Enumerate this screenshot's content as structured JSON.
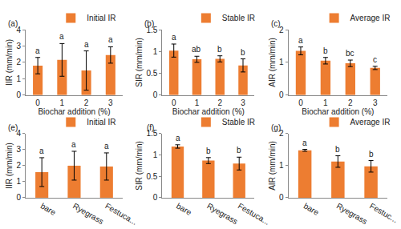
{
  "chart_data": [
    {
      "type": "bar",
      "title": "(a)",
      "x_label": "Biochar addition (%)",
      "y_label": "IIR (mm/min)",
      "categories": [
        "0",
        "1",
        "2",
        "3"
      ],
      "series": [
        {
          "name": "Initial IR",
          "color": "#ed7d31",
          "values": [
            1.8,
            2.15,
            1.5,
            2.45
          ],
          "errors": [
            0.5,
            1.0,
            1.2,
            0.5
          ]
        }
      ],
      "annotations": [
        "a",
        "a",
        "a",
        "a"
      ],
      "ylim": [
        0,
        4
      ],
      "yticks": [
        0,
        1,
        2,
        3,
        4
      ],
      "grid": false,
      "legend": "top"
    },
    {
      "type": "bar",
      "title": "(b)",
      "x_label": "Biochar addition (%)",
      "y_label": "SIR (mm/min)",
      "categories": [
        "0",
        "1",
        "2",
        "3"
      ],
      "series": [
        {
          "name": "Stable IR",
          "color": "#ed7d31",
          "values": [
            1.02,
            0.82,
            0.83,
            0.68
          ],
          "errors": [
            0.15,
            0.07,
            0.07,
            0.15
          ]
        }
      ],
      "annotations": [
        "a",
        "ab",
        "b",
        "b"
      ],
      "ylim": [
        0,
        1.5
      ],
      "yticks": [
        0,
        0.5,
        1,
        1.5
      ],
      "grid": false,
      "legend": "top"
    },
    {
      "type": "bar",
      "title": "(c)",
      "x_label": "Biochar addition (%)",
      "y_label": "AIR (mm/min)",
      "categories": [
        "0",
        "1",
        "2",
        "3"
      ],
      "series": [
        {
          "name": "Average IR",
          "color": "#ed7d31",
          "values": [
            1.35,
            1.05,
            0.97,
            0.83
          ],
          "errors": [
            0.12,
            0.1,
            0.1,
            0.05
          ]
        }
      ],
      "annotations": [
        "a",
        "b",
        "bc",
        "c"
      ],
      "ylim": [
        0,
        2
      ],
      "yticks": [
        0,
        1,
        2
      ],
      "grid": false,
      "legend": "top"
    },
    {
      "type": "bar",
      "title": "(e)",
      "y_label": "IIR (mm/min)",
      "categories": [
        "bare",
        "Ryegrass",
        "Festuca..."
      ],
      "series": [
        {
          "name": "Initial IR",
          "color": "#ed7d31",
          "values": [
            1.6,
            2.0,
            1.95
          ],
          "errors": [
            0.9,
            0.9,
            0.85
          ]
        }
      ],
      "annotations": [
        "a",
        "a",
        "a"
      ],
      "ylim": [
        0,
        4
      ],
      "yticks": [
        0,
        1,
        2,
        3,
        4
      ],
      "grid": false,
      "legend": "top"
    },
    {
      "type": "bar",
      "title": "(f)",
      "y_label": "SIR (mm/min)",
      "categories": [
        "bare",
        "Ryegrass",
        "Festuca..."
      ],
      "series": [
        {
          "name": "Stable IR",
          "color": "#ed7d31",
          "values": [
            1.2,
            0.87,
            0.8
          ],
          "errors": [
            0.04,
            0.07,
            0.15
          ]
        }
      ],
      "annotations": [
        "a",
        "b",
        "b"
      ],
      "ylim": [
        0,
        1.5
      ],
      "yticks": [
        0,
        0.5,
        1,
        1.5
      ],
      "grid": false,
      "legend": "top"
    },
    {
      "type": "bar",
      "title": "(g)",
      "y_label": "AIR (mm/min)",
      "categories": [
        "bare",
        "Ryegrass",
        "Festuc..."
      ],
      "series": [
        {
          "name": "Average IR",
          "color": "#ed7d31",
          "values": [
            1.48,
            1.13,
            0.98
          ],
          "errors": [
            0.03,
            0.18,
            0.18
          ]
        }
      ],
      "annotations": [
        "a",
        "b",
        "b"
      ],
      "ylim": [
        0,
        2
      ],
      "yticks": [
        0,
        1,
        2
      ],
      "grid": false,
      "legend": "top"
    }
  ]
}
